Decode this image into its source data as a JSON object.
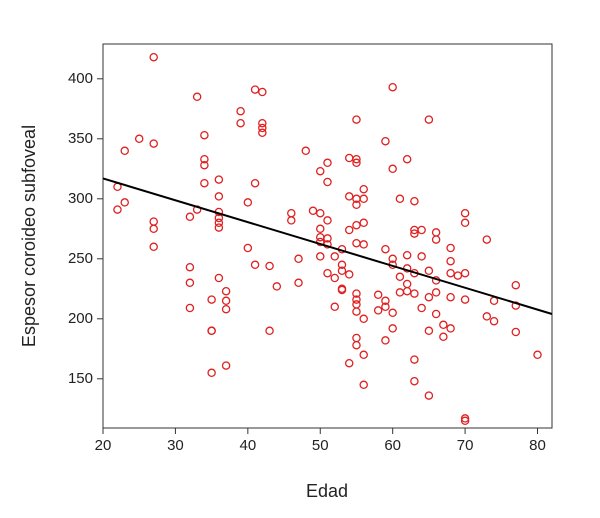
{
  "chart_data": {
    "type": "scatter",
    "x_label": "Edad",
    "y_label": "Espesor coroideo subfoveal",
    "xlim": [
      20,
      82
    ],
    "ylim": [
      109,
      429
    ],
    "xticks": [
      20,
      30,
      40,
      50,
      60,
      70,
      80
    ],
    "yticks": [
      150,
      200,
      250,
      300,
      350,
      400
    ],
    "color": "#e02020",
    "line_color": "#000000",
    "fit_line": {
      "x": [
        20,
        82
      ],
      "y": [
        317,
        204
      ]
    },
    "x": [
      22,
      22,
      23,
      23,
      25,
      27,
      27,
      27,
      27,
      27,
      32,
      32,
      32,
      32,
      33,
      33,
      34,
      34,
      34,
      34,
      35,
      35,
      35,
      35,
      36,
      36,
      36,
      36,
      36,
      36,
      36,
      37,
      37,
      37,
      37,
      39,
      39,
      40,
      40,
      41,
      41,
      41,
      42,
      42,
      42,
      42,
      43,
      43,
      44,
      46,
      46,
      47,
      47,
      48,
      49,
      50,
      50,
      50,
      50,
      50,
      50,
      51,
      51,
      51,
      51,
      51,
      51,
      52,
      52,
      52,
      53,
      53,
      53,
      53,
      53,
      54,
      54,
      54,
      54,
      54,
      55,
      55,
      55,
      55,
      55,
      55,
      55,
      55,
      55,
      55,
      55,
      55,
      55,
      56,
      56,
      56,
      56,
      56,
      56,
      56,
      58,
      58,
      59,
      59,
      59,
      59,
      59,
      60,
      60,
      60,
      60,
      60,
      60,
      61,
      61,
      61,
      62,
      62,
      62,
      62,
      62,
      63,
      63,
      63,
      63,
      63,
      63,
      63,
      64,
      64,
      64,
      65,
      65,
      65,
      65,
      65,
      66,
      66,
      66,
      66,
      66,
      67,
      67,
      68,
      68,
      68,
      68,
      68,
      69,
      70,
      70,
      70,
      70,
      70,
      70,
      73,
      73,
      74,
      74,
      77,
      77,
      77,
      80
    ],
    "y": [
      310,
      291,
      297,
      340,
      350,
      418,
      346,
      281,
      275,
      260,
      285,
      243,
      230,
      209,
      385,
      291,
      353,
      333,
      328,
      313,
      216,
      190,
      190,
      155,
      316,
      302,
      289,
      284,
      280,
      276,
      234,
      223,
      215,
      208,
      161,
      373,
      363,
      297,
      259,
      391,
      313,
      245,
      389,
      363,
      359,
      355,
      244,
      190,
      227,
      288,
      282,
      250,
      230,
      340,
      290,
      288,
      275,
      268,
      264,
      252,
      323,
      330,
      314,
      282,
      267,
      262,
      238,
      252,
      234,
      210,
      258,
      245,
      240,
      225,
      224,
      334,
      302,
      274,
      237,
      163,
      366,
      333,
      330,
      300,
      295,
      278,
      263,
      221,
      216,
      212,
      206,
      184,
      178,
      308,
      300,
      280,
      262,
      200,
      170,
      145,
      220,
      207,
      348,
      258,
      215,
      210,
      182,
      393,
      325,
      250,
      245,
      205,
      192,
      300,
      235,
      222,
      333,
      253,
      242,
      229,
      223,
      298,
      274,
      271,
      238,
      221,
      166,
      148,
      274,
      252,
      209,
      366,
      240,
      218,
      190,
      136,
      272,
      266,
      232,
      222,
      204,
      195,
      185,
      259,
      248,
      238,
      218,
      192,
      236,
      288,
      280,
      238,
      216,
      117,
      115,
      266,
      202,
      215,
      198,
      228,
      211,
      189,
      170
    ]
  }
}
